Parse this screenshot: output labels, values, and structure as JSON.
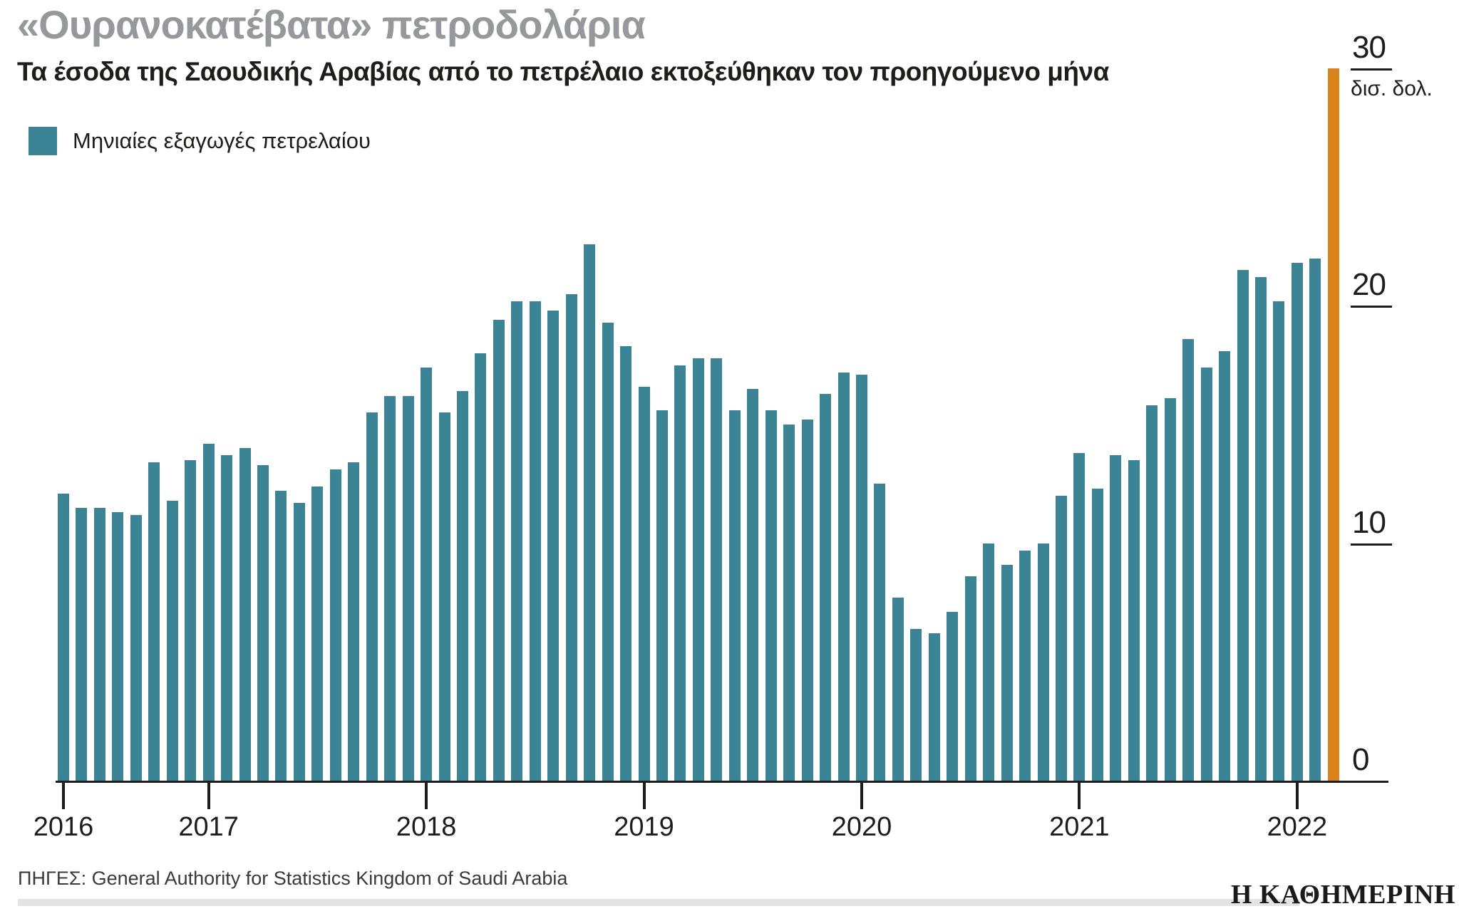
{
  "header": {
    "title": "«Ουρανοκατέβατα» πετροδολάρια",
    "subtitle": "Τα έσοδα της Σαουδικής Αραβίας από το πετρέλαιο εκτοξεύθηκαν τον προηγούμενο μήνα"
  },
  "legend": {
    "label": "Μηνιαίες εξαγωγές πετρελαίου"
  },
  "footer": {
    "source": "ΠΗΓΕΣ: General Authority for Statistics Kingdom of Saudi Arabia",
    "logo": "Η ΚΑΘΗΜΕΡΙΝΗ"
  },
  "colors": {
    "bar": "#3A8496",
    "highlight": "#D9831D",
    "title_gray": "#96989B",
    "rule_gray": "#E4E4E4"
  },
  "chart_data": {
    "type": "bar",
    "title": "«Ουρανοκατέβατα» πετροδολάρια",
    "subtitle": "Τα έσοδα της Σαουδικής Αραβίας από το πετρέλαιο εκτοξεύθηκαν τον προηγούμενο μήνα",
    "series_name": "Μηνιαίες εξαγωγές πετρελαίου",
    "unit_label": "δισ. δολ.",
    "frequency": "monthly",
    "start_month": "2016-05",
    "end_month": "2022-03",
    "x_tick_labels": [
      "2016",
      "2017",
      "2018",
      "2019",
      "2020",
      "2021",
      "2022"
    ],
    "x_tick_month_index": [
      0,
      8,
      20,
      32,
      44,
      56,
      68
    ],
    "yticks": [
      30,
      20,
      10,
      0
    ],
    "ylim": [
      0,
      30
    ],
    "grid": false,
    "legend_position": "top-left",
    "highlight_last_bar": true,
    "values": [
      12.1,
      11.5,
      11.5,
      11.3,
      11.2,
      13.4,
      11.8,
      13.5,
      14.2,
      13.7,
      14.0,
      13.3,
      12.2,
      11.7,
      12.4,
      13.1,
      13.4,
      15.5,
      16.2,
      16.2,
      17.4,
      15.5,
      16.4,
      18.0,
      19.4,
      20.2,
      20.2,
      19.8,
      20.5,
      22.6,
      19.3,
      18.3,
      16.6,
      15.6,
      17.5,
      17.8,
      17.8,
      15.6,
      16.5,
      15.6,
      15.0,
      15.2,
      16.3,
      17.2,
      17.1,
      12.5,
      7.7,
      6.4,
      6.2,
      7.1,
      8.6,
      10.0,
      9.1,
      9.7,
      10.0,
      12.0,
      13.8,
      12.3,
      13.7,
      13.5,
      15.8,
      16.1,
      18.6,
      17.4,
      18.1,
      21.5,
      21.2,
      20.2,
      21.8,
      22.0,
      30.0
    ]
  }
}
